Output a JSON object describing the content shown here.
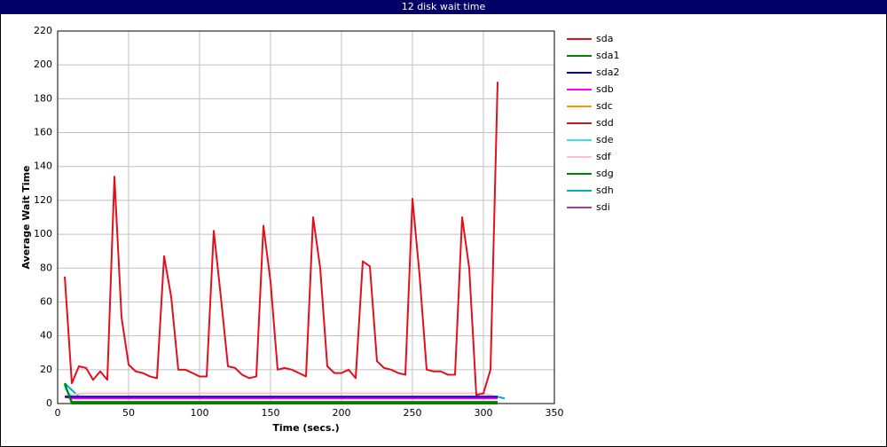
{
  "chart_data": {
    "type": "line",
    "title": "12 disk wait time",
    "xlabel": "Time (secs.)",
    "ylabel": "Average Wait Time",
    "xlim": [
      0,
      350
    ],
    "xticks": [
      0,
      50,
      100,
      150,
      200,
      250,
      300,
      350
    ],
    "ylim": [
      0,
      220
    ],
    "yticks": [
      0,
      20,
      40,
      60,
      80,
      100,
      120,
      140,
      160,
      180,
      200,
      220
    ],
    "grid": true,
    "legend": "right",
    "series": [
      {
        "name": "sda",
        "color": "#e0101e",
        "x": [
          5,
          10,
          15,
          20,
          25,
          30,
          35,
          40,
          45,
          50,
          55,
          60,
          65,
          70,
          75,
          80,
          85,
          90,
          95,
          100,
          105,
          110,
          115,
          120,
          125,
          130,
          135,
          140,
          145,
          150,
          155,
          160,
          165,
          170,
          175,
          180,
          185,
          190,
          195,
          200,
          205,
          210,
          215,
          220,
          225,
          230,
          235,
          240,
          245,
          250,
          255,
          260,
          265,
          270,
          275,
          280,
          285,
          290,
          295,
          300,
          305,
          310
        ],
        "values": [
          75,
          12,
          22,
          21,
          14,
          19,
          14,
          134,
          51,
          23,
          19,
          18,
          16,
          15,
          87,
          63,
          20,
          20,
          18,
          16,
          16,
          102,
          63,
          22,
          21,
          17,
          15,
          16,
          105,
          72,
          20,
          21,
          20,
          18,
          16,
          110,
          80,
          22,
          18,
          18,
          20,
          15,
          84,
          81,
          25,
          21,
          20,
          18,
          17,
          121,
          76,
          20,
          19,
          19,
          17,
          17,
          110,
          80,
          5,
          6,
          20,
          190
        ]
      },
      {
        "name": "sda1",
        "color": "#008000",
        "x": [
          5,
          10,
          310
        ],
        "values": [
          12,
          0,
          0
        ]
      },
      {
        "name": "sda2",
        "color": "#0000c0",
        "x": [
          5,
          310
        ],
        "values": [
          4,
          4
        ]
      },
      {
        "name": "sdb",
        "color": "#ff00ff",
        "x": [
          5,
          10,
          310
        ],
        "values": [
          4,
          3,
          3
        ]
      },
      {
        "name": "sdc",
        "color": "#ff9900",
        "x": [
          5,
          310
        ],
        "values": [
          4,
          4
        ]
      },
      {
        "name": "sdd",
        "color": "#b22222",
        "x": [
          5,
          310
        ],
        "values": [
          4,
          4
        ]
      },
      {
        "name": "sde",
        "color": "#33e6e6",
        "x": [
          5,
          10,
          310
        ],
        "values": [
          9,
          4,
          4
        ]
      },
      {
        "name": "sdf",
        "color": "#ffc0cb",
        "x": [
          5,
          20,
          60,
          100,
          140,
          180,
          220,
          260,
          300,
          310
        ],
        "values": [
          5,
          6,
          6,
          6,
          6,
          6,
          6,
          6,
          6,
          4
        ]
      },
      {
        "name": "sdg",
        "color": "#008000",
        "x": [
          5,
          10,
          310
        ],
        "values": [
          11,
          1,
          1
        ]
      },
      {
        "name": "sdh",
        "color": "#00b0c8",
        "x": [
          5,
          15,
          310,
          315
        ],
        "values": [
          12,
          4,
          4,
          3
        ]
      },
      {
        "name": "sdi",
        "color": "#a040a0",
        "x": [
          5,
          310
        ],
        "values": [
          4,
          4
        ]
      }
    ]
  }
}
